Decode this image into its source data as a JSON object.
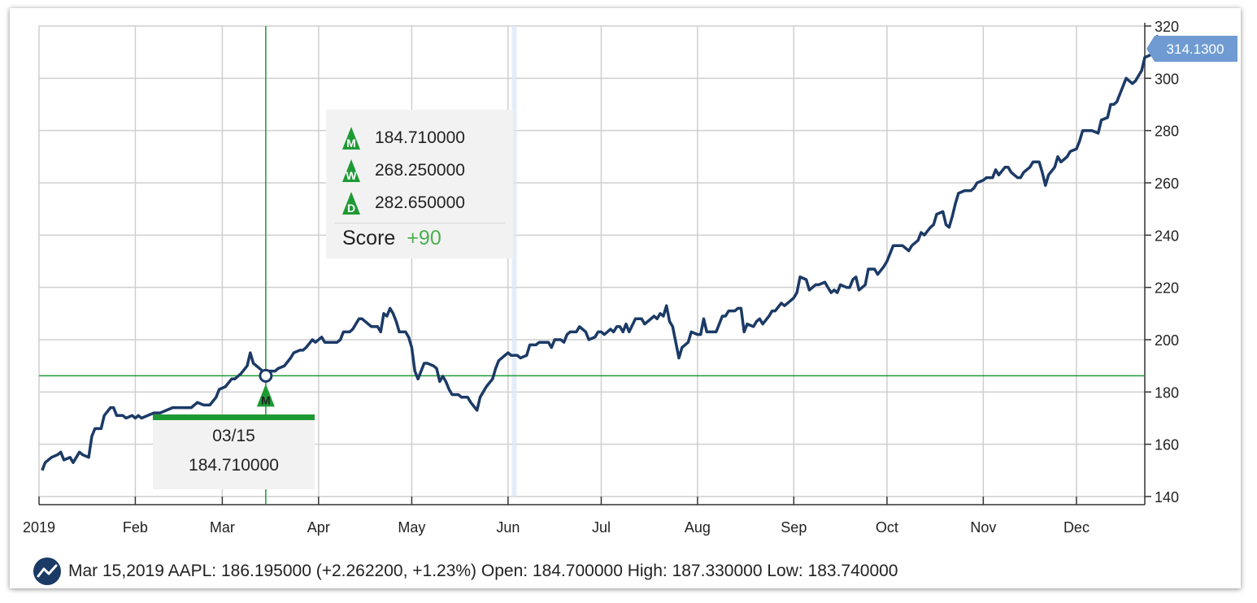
{
  "chart_data": {
    "type": "line",
    "ticker": "AAPL",
    "y_ticks": [
      140,
      160,
      180,
      200,
      220,
      240,
      260,
      280,
      300,
      320
    ],
    "ylim": [
      140,
      320
    ],
    "x_ticks": [
      {
        "label": "2019",
        "day": 0
      },
      {
        "label": "Feb",
        "day": 31
      },
      {
        "label": "Mar",
        "day": 59
      },
      {
        "label": "Apr",
        "day": 90
      },
      {
        "label": "May",
        "day": 120
      },
      {
        "label": "Jun",
        "day": 151
      },
      {
        "label": "Jul",
        "day": 181
      },
      {
        "label": "Aug",
        "day": 212
      },
      {
        "label": "Sep",
        "day": 243
      },
      {
        "label": "Oct",
        "day": 273
      },
      {
        "label": "Nov",
        "day": 304
      },
      {
        "label": "Dec",
        "day": 334
      }
    ],
    "xlim_days": [
      0,
      356
    ],
    "series": [
      {
        "color": "#1b3a66",
        "points": [
          [
            1,
            150
          ],
          [
            2,
            153
          ],
          [
            4,
            155
          ],
          [
            6,
            156
          ],
          [
            7,
            157
          ],
          [
            8,
            154
          ],
          [
            10,
            155
          ],
          [
            11,
            153
          ],
          [
            13,
            157
          ],
          [
            14,
            156
          ],
          [
            16,
            155
          ],
          [
            17,
            163
          ],
          [
            18,
            166
          ],
          [
            20,
            166
          ],
          [
            21,
            171
          ],
          [
            23,
            174
          ],
          [
            24,
            174
          ],
          [
            25,
            171
          ],
          [
            27,
            171
          ],
          [
            28,
            170
          ],
          [
            30,
            171
          ],
          [
            31,
            170
          ],
          [
            32,
            171
          ],
          [
            33,
            170
          ],
          [
            35,
            171
          ],
          [
            37,
            172
          ],
          [
            39,
            172
          ],
          [
            41,
            173
          ],
          [
            43,
            174
          ],
          [
            45,
            174
          ],
          [
            47,
            174
          ],
          [
            49,
            174
          ],
          [
            51,
            176
          ],
          [
            53,
            175
          ],
          [
            55,
            175
          ],
          [
            57,
            178
          ],
          [
            58,
            181
          ],
          [
            60,
            182
          ],
          [
            62,
            185
          ],
          [
            63,
            185
          ],
          [
            65,
            187
          ],
          [
            67,
            190
          ],
          [
            68,
            195
          ],
          [
            69,
            191
          ],
          [
            71,
            189
          ],
          [
            73,
            187
          ],
          [
            74,
            188
          ],
          [
            76,
            188
          ],
          [
            77,
            189
          ],
          [
            79,
            190
          ],
          [
            81,
            193
          ],
          [
            82,
            195
          ],
          [
            84,
            196
          ],
          [
            85,
            196
          ],
          [
            86,
            197
          ],
          [
            88,
            200
          ],
          [
            89,
            199
          ],
          [
            91,
            201
          ],
          [
            92,
            199
          ],
          [
            94,
            199
          ],
          [
            96,
            199
          ],
          [
            97,
            200
          ],
          [
            98,
            203
          ],
          [
            100,
            203
          ],
          [
            101,
            204
          ],
          [
            103,
            208
          ],
          [
            104,
            208
          ],
          [
            106,
            206
          ],
          [
            107,
            205
          ],
          [
            109,
            205
          ],
          [
            110,
            203
          ],
          [
            111,
            210
          ],
          [
            112,
            209
          ],
          [
            113,
            212
          ],
          [
            114,
            210
          ],
          [
            115,
            207
          ],
          [
            116,
            203
          ],
          [
            118,
            203
          ],
          [
            119,
            201
          ],
          [
            120,
            197
          ],
          [
            121,
            188
          ],
          [
            122,
            185
          ],
          [
            124,
            191
          ],
          [
            125,
            191
          ],
          [
            127,
            190
          ],
          [
            128,
            189
          ],
          [
            129,
            184
          ],
          [
            130,
            186
          ],
          [
            131,
            184
          ],
          [
            132,
            181
          ],
          [
            133,
            179
          ],
          [
            135,
            179
          ],
          [
            136,
            178
          ],
          [
            138,
            178
          ],
          [
            139,
            176
          ],
          [
            141,
            173
          ],
          [
            142,
            178
          ],
          [
            144,
            182
          ],
          [
            146,
            185
          ],
          [
            147,
            189
          ],
          [
            148,
            192
          ],
          [
            150,
            194
          ],
          [
            151,
            195
          ],
          [
            152,
            194
          ],
          [
            154,
            194
          ],
          [
            155,
            193
          ],
          [
            157,
            194
          ],
          [
            158,
            198
          ],
          [
            160,
            198
          ],
          [
            161,
            199
          ],
          [
            163,
            199
          ],
          [
            164,
            199
          ],
          [
            165,
            197
          ],
          [
            166,
            200
          ],
          [
            168,
            200
          ],
          [
            169,
            199
          ],
          [
            170,
            202
          ],
          [
            171,
            203
          ],
          [
            173,
            203
          ],
          [
            174,
            205
          ],
          [
            175,
            204
          ],
          [
            176,
            203
          ],
          [
            177,
            200
          ],
          [
            179,
            201
          ],
          [
            180,
            203
          ],
          [
            181,
            203
          ],
          [
            182,
            202
          ],
          [
            184,
            204
          ],
          [
            185,
            203
          ],
          [
            186,
            205
          ],
          [
            187,
            205
          ],
          [
            188,
            203
          ],
          [
            189,
            206
          ],
          [
            190,
            203
          ],
          [
            192,
            208
          ],
          [
            193,
            208
          ],
          [
            194,
            208
          ],
          [
            195,
            206
          ],
          [
            196,
            207
          ],
          [
            198,
            209
          ],
          [
            199,
            208
          ],
          [
            200,
            210
          ],
          [
            201,
            209
          ],
          [
            202,
            213
          ],
          [
            203,
            207
          ],
          [
            204,
            205
          ],
          [
            206,
            193
          ],
          [
            207,
            197
          ],
          [
            209,
            199
          ],
          [
            210,
            203
          ],
          [
            212,
            202
          ],
          [
            213,
            202
          ],
          [
            214,
            208
          ],
          [
            215,
            203
          ],
          [
            216,
            203
          ],
          [
            218,
            203
          ],
          [
            220,
            209
          ],
          [
            221,
            209
          ],
          [
            222,
            211
          ],
          [
            224,
            211
          ],
          [
            225,
            212
          ],
          [
            226,
            212
          ],
          [
            227,
            203
          ],
          [
            228,
            206
          ],
          [
            230,
            205
          ],
          [
            231,
            207
          ],
          [
            232,
            208
          ],
          [
            233,
            206
          ],
          [
            235,
            209
          ],
          [
            236,
            211
          ],
          [
            237,
            211
          ],
          [
            239,
            214
          ],
          [
            240,
            213
          ],
          [
            242,
            215
          ],
          [
            243,
            216
          ],
          [
            244,
            218
          ],
          [
            245,
            224
          ],
          [
            247,
            223
          ],
          [
            248,
            219
          ],
          [
            250,
            221
          ],
          [
            251,
            221
          ],
          [
            253,
            222
          ],
          [
            254,
            220
          ],
          [
            255,
            218
          ],
          [
            256,
            219
          ],
          [
            257,
            218
          ],
          [
            258,
            221
          ],
          [
            260,
            220
          ],
          [
            261,
            220
          ],
          [
            262,
            223
          ],
          [
            263,
            224
          ],
          [
            264,
            219
          ],
          [
            266,
            221
          ],
          [
            267,
            227
          ],
          [
            269,
            227
          ],
          [
            270,
            225
          ],
          [
            272,
            228
          ],
          [
            273,
            230
          ],
          [
            275,
            236
          ],
          [
            277,
            236
          ],
          [
            278,
            236
          ],
          [
            279,
            235
          ],
          [
            280,
            234
          ],
          [
            281,
            236
          ],
          [
            283,
            238
          ],
          [
            284,
            241
          ],
          [
            285,
            240
          ],
          [
            287,
            243
          ],
          [
            288,
            244
          ],
          [
            289,
            248
          ],
          [
            291,
            249
          ],
          [
            292,
            244
          ],
          [
            293,
            243
          ],
          [
            294,
            247
          ],
          [
            295,
            252
          ],
          [
            296,
            256
          ],
          [
            298,
            257
          ],
          [
            300,
            257
          ],
          [
            301,
            258
          ],
          [
            302,
            260
          ],
          [
            304,
            261
          ],
          [
            305,
            262
          ],
          [
            306,
            262
          ],
          [
            307,
            262
          ],
          [
            308,
            265
          ],
          [
            309,
            263
          ],
          [
            311,
            266
          ],
          [
            312,
            266
          ],
          [
            313,
            264
          ],
          [
            315,
            262
          ],
          [
            316,
            262
          ],
          [
            317,
            264
          ],
          [
            319,
            266
          ],
          [
            320,
            268
          ],
          [
            322,
            268
          ],
          [
            323,
            264
          ],
          [
            324,
            259
          ],
          [
            325,
            263
          ],
          [
            327,
            266
          ],
          [
            328,
            270
          ],
          [
            329,
            268
          ],
          [
            330,
            269
          ],
          [
            331,
            270
          ],
          [
            332,
            272
          ],
          [
            334,
            273
          ],
          [
            335,
            276
          ],
          [
            336,
            280
          ],
          [
            338,
            280
          ],
          [
            339,
            280
          ],
          [
            341,
            279
          ],
          [
            342,
            284
          ],
          [
            344,
            285
          ],
          [
            345,
            290
          ],
          [
            346,
            290
          ],
          [
            347,
            291
          ],
          [
            348,
            294
          ],
          [
            350,
            300
          ],
          [
            351,
            299
          ],
          [
            352,
            298
          ],
          [
            353,
            299
          ],
          [
            355,
            303
          ],
          [
            356,
            308
          ],
          [
            358,
            309
          ],
          [
            359,
            310
          ],
          [
            360,
            316
          ],
          [
            361,
            314
          ]
        ]
      }
    ],
    "last_value_label": "314.1300",
    "crosshair": {
      "day": 73,
      "value": 186.195
    },
    "highlight_band_day": 153,
    "selected_point": {
      "date_label": "03/15",
      "value_label": "184.710000"
    },
    "tooltip": {
      "rows": [
        {
          "icon": "M",
          "value": "184.710000"
        },
        {
          "icon": "W",
          "value": "268.250000"
        },
        {
          "icon": "D",
          "value": "282.650000"
        }
      ],
      "score_label": "Score",
      "score_value": "+90"
    },
    "marker_icon": "M",
    "grid": true,
    "colors": {
      "line": "#1b3a66",
      "crosshair": "#1e9a35",
      "bubble": "#6f9bd2",
      "signal": "#1e9a35",
      "score": "#4caf50"
    }
  },
  "footer": {
    "text": "Mar 15,2019 AAPL: 186.195000 (+2.262200, +1.23%) Open: 184.700000 High: 187.330000 Low: 183.740000",
    "logo_icon": "line-chart-logo-icon"
  }
}
